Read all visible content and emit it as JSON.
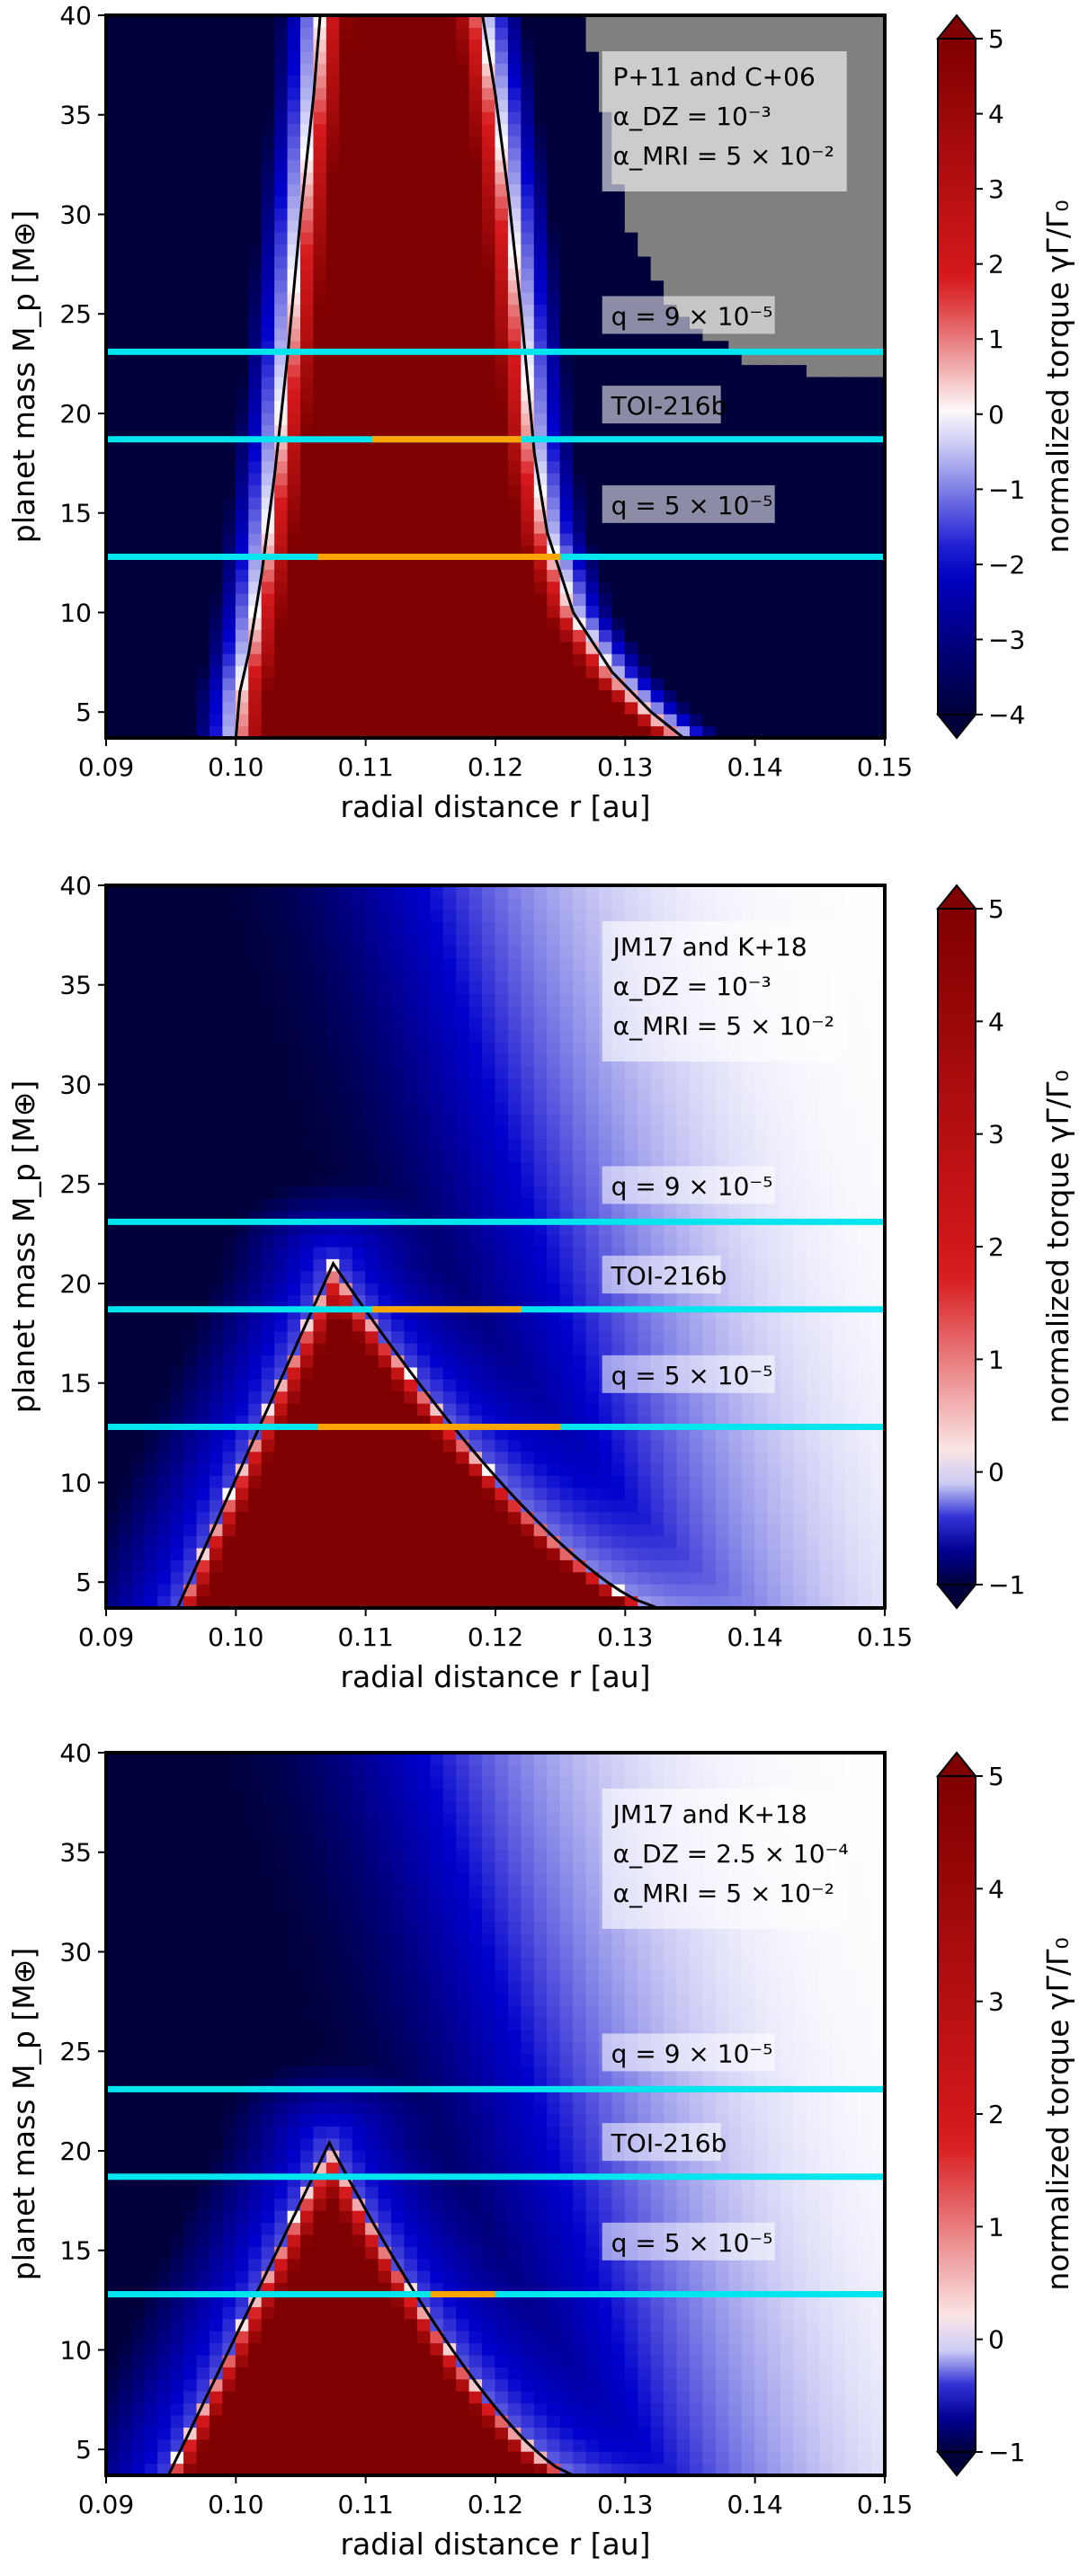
{
  "colors": {
    "dark_red": "#7f0000",
    "red": "#d7191c",
    "white": "#ffffff",
    "blue": "#0000cd",
    "dark_blue": "#00003a",
    "gray": "#808080",
    "cyan": "#00e5ee",
    "orange": "#ffa500",
    "contour": "#000000"
  },
  "chart_data": [
    {
      "type": "heatmap",
      "xlabel": "radial distance r [au]",
      "ylabel": "planet mass M_p [M⊕]",
      "xlim": [
        0.09,
        0.15
      ],
      "ylim": [
        3.7,
        40
      ],
      "xticks": [
        "0.09",
        "0.10",
        "0.11",
        "0.12",
        "0.13",
        "0.14",
        "0.15"
      ],
      "yticks": [
        "5",
        "10",
        "15",
        "20",
        "25",
        "30",
        "35",
        "40"
      ],
      "xtick_values": [
        0.09,
        0.1,
        0.11,
        0.12,
        0.13,
        0.14,
        0.15
      ],
      "ytick_values": [
        5,
        10,
        15,
        20,
        25,
        30,
        35,
        40
      ],
      "colorbar": {
        "label": "normalized torque γΓ/Γ₀",
        "min": -4,
        "max": 5,
        "ticks": [
          "5",
          "4",
          "3",
          "2",
          "1",
          "0",
          "−1",
          "−2",
          "−3",
          "−4"
        ],
        "tick_values": [
          5,
          4,
          3,
          2,
          1,
          0,
          -1,
          -2,
          -3,
          -4
        ]
      },
      "box_lines": [
        "P+11 and C+06",
        "α_DZ = 10⁻³",
        "α_MRI = 5 × 10⁻²"
      ],
      "annotations": [
        {
          "text": "q = 9 × 10⁻⁵",
          "x": 0.1285,
          "y": 24.9
        },
        {
          "text": "TOI-216b",
          "x": 0.1285,
          "y": 20.4
        },
        {
          "text": "q = 5 × 10⁻⁵",
          "x": 0.1285,
          "y": 15.4
        }
      ],
      "hlines": [
        {
          "name": "q = 9e-5",
          "y": 23.1,
          "orange": null
        },
        {
          "name": "TOI-216b",
          "y": 18.7,
          "orange": [
            0.1105,
            0.122
          ]
        },
        {
          "name": "q = 5e-5",
          "y": 12.8,
          "orange": [
            0.1063,
            0.125
          ]
        }
      ],
      "model": "P11",
      "contour_points": [
        [
          0.1,
          3.7
        ],
        [
          0.1003,
          6.0
        ],
        [
          0.101,
          8.0
        ],
        [
          0.102,
          12.0
        ],
        [
          0.103,
          17.0
        ],
        [
          0.104,
          23.0
        ],
        [
          0.105,
          30.0
        ],
        [
          0.106,
          36.0
        ],
        [
          0.1065,
          40.0
        ]
      ],
      "contour_points_right": [
        [
          0.119,
          40.0
        ],
        [
          0.12,
          36.0
        ],
        [
          0.121,
          31.0
        ],
        [
          0.122,
          25.0
        ],
        [
          0.123,
          18.0
        ],
        [
          0.124,
          14.0
        ],
        [
          0.126,
          10.0
        ],
        [
          0.129,
          7.0
        ],
        [
          0.132,
          5.0
        ],
        [
          0.1345,
          3.7
        ]
      ],
      "gray_region_start": {
        "y": 21.7,
        "edge": [
          [
            0.15,
            21.7
          ],
          [
            0.14,
            22.5
          ],
          [
            0.135,
            24.5
          ],
          [
            0.132,
            27.0
          ],
          [
            0.13,
            30.0
          ],
          [
            0.129,
            33.5
          ],
          [
            0.128,
            36.5
          ],
          [
            0.127,
            40.0
          ]
        ]
      }
    },
    {
      "type": "heatmap",
      "xlabel": "radial distance r [au]",
      "ylabel": "planet mass M_p [M⊕]",
      "xlim": [
        0.09,
        0.15
      ],
      "ylim": [
        3.7,
        40
      ],
      "xticks": [
        "0.09",
        "0.10",
        "0.11",
        "0.12",
        "0.13",
        "0.14",
        "0.15"
      ],
      "yticks": [
        "5",
        "10",
        "15",
        "20",
        "25",
        "30",
        "35",
        "40"
      ],
      "xtick_values": [
        0.09,
        0.1,
        0.11,
        0.12,
        0.13,
        0.14,
        0.15
      ],
      "ytick_values": [
        5,
        10,
        15,
        20,
        25,
        30,
        35,
        40
      ],
      "colorbar": {
        "label": "normalized torque γΓ/Γ₀",
        "min": -1,
        "max": 5,
        "ticks": [
          "5",
          "4",
          "3",
          "2",
          "1",
          "0",
          "−1"
        ],
        "tick_values": [
          5,
          4,
          3,
          2,
          1,
          0,
          -1
        ]
      },
      "box_lines": [
        "JM17 and K+18",
        "α_DZ = 10⁻³",
        "α_MRI = 5 × 10⁻²"
      ],
      "annotations": [
        {
          "text": "q = 9 × 10⁻⁵",
          "x": 0.1285,
          "y": 24.9
        },
        {
          "text": "TOI-216b",
          "x": 0.1285,
          "y": 20.4
        },
        {
          "text": "q = 5 × 10⁻⁵",
          "x": 0.1285,
          "y": 15.4
        }
      ],
      "hlines": [
        {
          "name": "q = 9e-5",
          "y": 23.1,
          "orange": null
        },
        {
          "name": "TOI-216b",
          "y": 18.7,
          "orange": [
            0.1105,
            0.122
          ]
        },
        {
          "name": "q = 5e-5",
          "y": 12.8,
          "orange": [
            0.1063,
            0.125
          ]
        }
      ],
      "model": "JM17",
      "peak": {
        "x": 0.1075,
        "m": 21.0,
        "xl": 0.0955,
        "xr": 0.1325
      }
    },
    {
      "type": "heatmap",
      "xlabel": "radial distance r [au]",
      "ylabel": "planet mass M_p [M⊕]",
      "xlim": [
        0.09,
        0.15
      ],
      "ylim": [
        3.7,
        40
      ],
      "xticks": [
        "0.09",
        "0.10",
        "0.11",
        "0.12",
        "0.13",
        "0.14",
        "0.15"
      ],
      "yticks": [
        "5",
        "10",
        "15",
        "20",
        "25",
        "30",
        "35",
        "40"
      ],
      "xtick_values": [
        0.09,
        0.1,
        0.11,
        0.12,
        0.13,
        0.14,
        0.15
      ],
      "ytick_values": [
        5,
        10,
        15,
        20,
        25,
        30,
        35,
        40
      ],
      "colorbar": {
        "label": "normalized torque γΓ/Γ₀",
        "min": -1,
        "max": 5,
        "ticks": [
          "5",
          "4",
          "3",
          "2",
          "1",
          "0",
          "−1"
        ],
        "tick_values": [
          5,
          4,
          3,
          2,
          1,
          0,
          -1
        ]
      },
      "box_lines": [
        "JM17 and K+18",
        "α_DZ = 2.5 × 10⁻⁴",
        "α_MRI = 5 × 10⁻²"
      ],
      "annotations": [
        {
          "text": "q = 9 × 10⁻⁵",
          "x": 0.1285,
          "y": 24.9
        },
        {
          "text": "TOI-216b",
          "x": 0.1285,
          "y": 20.4
        },
        {
          "text": "q = 5 × 10⁻⁵",
          "x": 0.1285,
          "y": 15.4
        }
      ],
      "hlines": [
        {
          "name": "q = 9e-5",
          "y": 23.1,
          "orange": null
        },
        {
          "name": "TOI-216b",
          "y": 18.7,
          "orange": null
        },
        {
          "name": "q = 5e-5",
          "y": 12.8,
          "orange": [
            0.115,
            0.12
          ]
        }
      ],
      "model": "JM17",
      "peak": {
        "x": 0.1072,
        "m": 20.4,
        "xl": 0.0948,
        "xr": 0.126
      }
    }
  ]
}
